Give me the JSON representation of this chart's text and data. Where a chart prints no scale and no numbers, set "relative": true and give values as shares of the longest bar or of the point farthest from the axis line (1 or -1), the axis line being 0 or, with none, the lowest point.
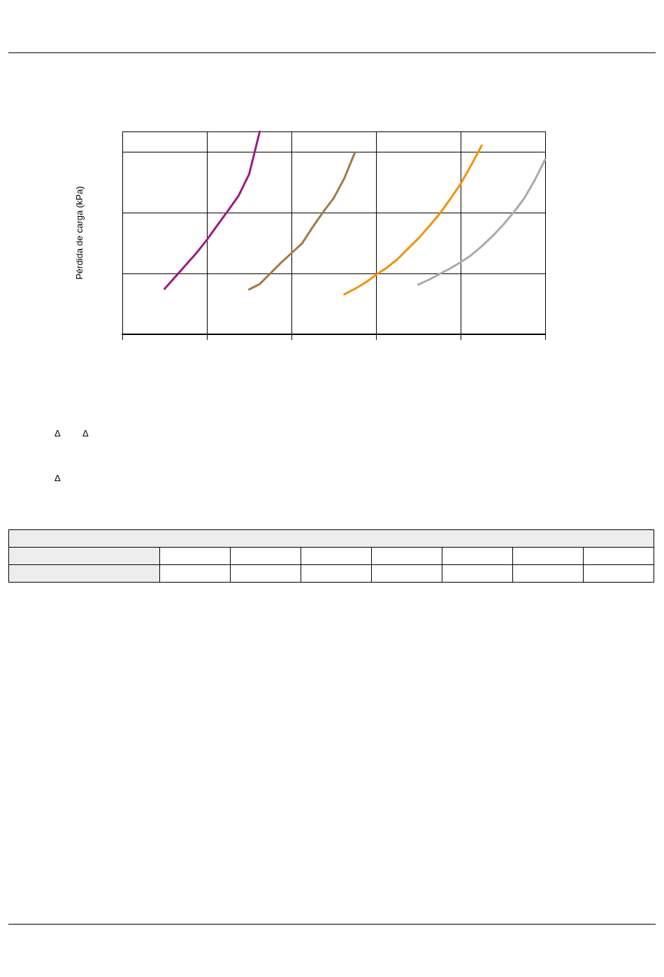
{
  "chart_data": {
    "type": "line",
    "ylabel": "Pérdida de carga (kPa)",
    "relative": true,
    "grid": true,
    "marker": "none",
    "line_style": "solid",
    "categories": [
      null,
      null,
      null,
      null,
      null,
      null,
      null,
      null,
      null,
      null,
      null,
      null,
      null,
      null,
      null,
      null,
      null,
      null,
      null,
      null,
      null,
      null,
      null,
      null,
      null,
      null,
      null,
      null,
      null,
      null,
      null,
      null,
      null,
      null,
      null,
      null,
      null,
      null,
      null,
      null,
      null
    ],
    "series": [
      {
        "color": "#9b1b84",
        "values": [
          null,
          null,
          null,
          null,
          0.224,
          0.283,
          0.341,
          0.4,
          0.466,
          0.538,
          0.61,
          0.683,
          0.79,
          1,
          null,
          null,
          null,
          null,
          null,
          null,
          null,
          null,
          null,
          null,
          null,
          null,
          null,
          null,
          null,
          null,
          null,
          null,
          null,
          null,
          null,
          null,
          null,
          null,
          null,
          null,
          null
        ]
      },
      {
        "color": "#a07a45",
        "values": [
          null,
          null,
          null,
          null,
          null,
          null,
          null,
          null,
          null,
          null,
          null,
          null,
          0.221,
          0.248,
          0.3,
          0.352,
          0.4,
          0.448,
          0.528,
          0.603,
          0.672,
          0.769,
          0.897,
          null,
          null,
          null,
          null,
          null,
          null,
          null,
          null,
          null,
          null,
          null,
          null,
          null,
          null,
          null,
          null,
          null,
          null
        ]
      },
      {
        "color": "#f39200",
        "values": [
          null,
          null,
          null,
          null,
          null,
          null,
          null,
          null,
          null,
          null,
          null,
          null,
          null,
          null,
          null,
          null,
          null,
          null,
          null,
          null,
          null,
          0.197,
          0.224,
          0.255,
          0.293,
          0.328,
          0.369,
          0.421,
          0.472,
          0.531,
          0.593,
          0.666,
          0.741,
          0.834,
          0.931,
          null,
          null,
          null,
          null,
          null,
          null
        ]
      },
      {
        "color": "#aaaaaa",
        "values": [
          null,
          null,
          null,
          null,
          null,
          null,
          null,
          null,
          null,
          null,
          null,
          null,
          null,
          null,
          null,
          null,
          null,
          null,
          null,
          null,
          null,
          null,
          null,
          null,
          null,
          null,
          null,
          null,
          0.245,
          0.269,
          0.297,
          0.324,
          0.355,
          0.39,
          0.434,
          0.483,
          0.538,
          0.6,
          0.669,
          0.759,
          0.862
        ]
      }
    ],
    "annotations": [
      "Δ",
      "Δ",
      "Δ"
    ]
  }
}
